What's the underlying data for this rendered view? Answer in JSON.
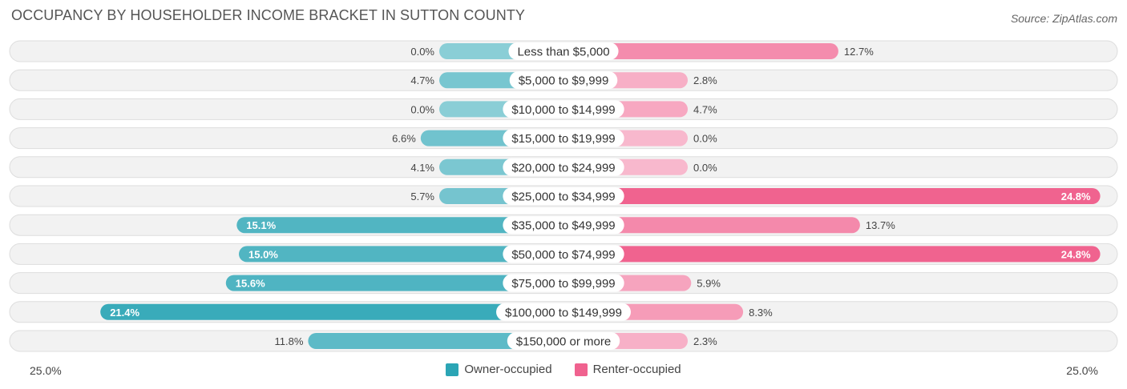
{
  "title": "OCCUPANCY BY HOUSEHOLDER INCOME BRACKET IN SUTTON COUNTY",
  "source": "Source: ZipAtlas.com",
  "chart_data": {
    "type": "bar",
    "orientation": "horizontal-diverging",
    "categories": [
      "Less than $5,000",
      "$5,000 to $9,999",
      "$10,000 to $14,999",
      "$15,000 to $19,999",
      "$20,000 to $24,999",
      "$25,000 to $34,999",
      "$35,000 to $49,999",
      "$50,000 to $74,999",
      "$75,000 to $99,999",
      "$100,000 to $149,999",
      "$150,000 or more"
    ],
    "series": [
      {
        "name": "Owner-occupied",
        "color": "#2ba5b5",
        "values": [
          0.0,
          4.7,
          0.0,
          6.6,
          4.1,
          5.7,
          15.1,
          15.0,
          15.6,
          21.4,
          11.8
        ],
        "labels": [
          "0.0%",
          "4.7%",
          "0.0%",
          "6.6%",
          "4.1%",
          "5.7%",
          "15.1%",
          "15.0%",
          "15.6%",
          "21.4%",
          "11.8%"
        ]
      },
      {
        "name": "Renter-occupied",
        "color": "#f0628f",
        "values": [
          12.7,
          2.8,
          4.7,
          0.0,
          0.0,
          24.8,
          13.7,
          24.8,
          5.9,
          8.3,
          2.3
        ],
        "labels": [
          "12.7%",
          "2.8%",
          "4.7%",
          "0.0%",
          "0.0%",
          "24.8%",
          "13.7%",
          "24.8%",
          "5.9%",
          "8.3%",
          "2.3%"
        ]
      }
    ],
    "xlim": [
      -25.0,
      25.0
    ],
    "axis_labels": {
      "left": "25.0%",
      "right": "25.0%"
    },
    "legend_placement": "bottom-center"
  }
}
